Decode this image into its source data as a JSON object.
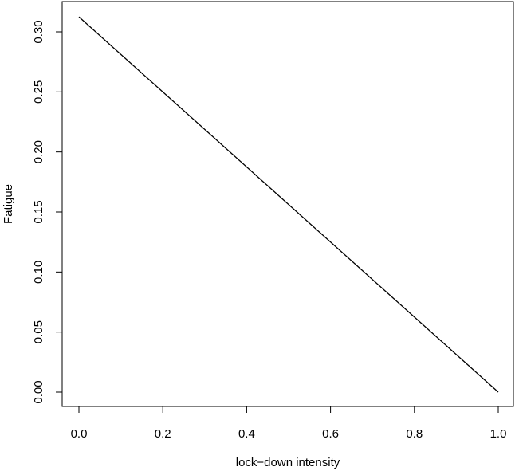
{
  "chart_data": {
    "type": "line",
    "title": "",
    "xlabel": "lock−down intensity",
    "ylabel": "Fatigue",
    "xlim": [
      0.0,
      1.0
    ],
    "ylim": [
      0.0,
      0.3125
    ],
    "x_ticks": [
      "0.0",
      "0.2",
      "0.4",
      "0.6",
      "0.8",
      "1.0"
    ],
    "y_ticks": [
      "0.00",
      "0.05",
      "0.10",
      "0.15",
      "0.20",
      "0.25",
      "0.30"
    ],
    "grid": false,
    "legend": "none",
    "series": [
      {
        "x": [
          0.0,
          1.0
        ],
        "y": [
          0.3125,
          0.0
        ],
        "color": "#000000"
      }
    ]
  }
}
